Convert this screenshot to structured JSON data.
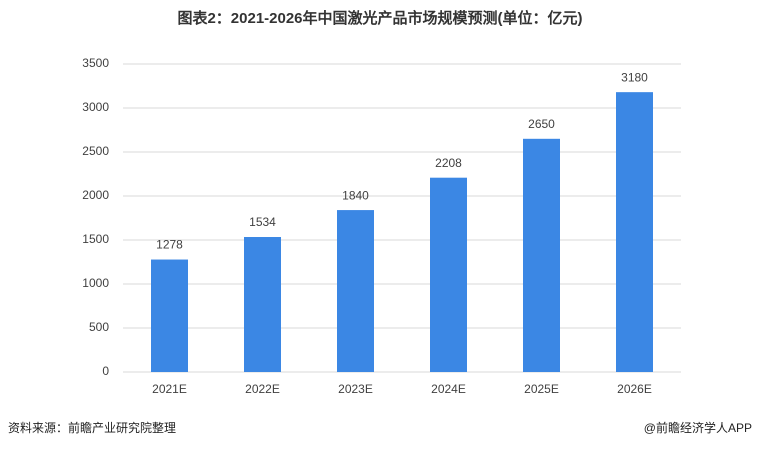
{
  "chart_data": {
    "type": "bar",
    "title": "图表2：2021-2026年中国激光产品市场规模预测(单位：亿元)",
    "categories": [
      "2021E",
      "2022E",
      "2023E",
      "2024E",
      "2025E",
      "2026E"
    ],
    "values": [
      1278,
      1534,
      1840,
      2208,
      2650,
      3180
    ],
    "color": "#3b87e4",
    "ylim": [
      0,
      3500
    ],
    "yticks": [
      0,
      500,
      1000,
      1500,
      2000,
      2500,
      3000,
      3500
    ],
    "grid": true,
    "source": "资料来源：前瞻产业研究院整理",
    "credit": "@前瞻经济学人APP"
  }
}
